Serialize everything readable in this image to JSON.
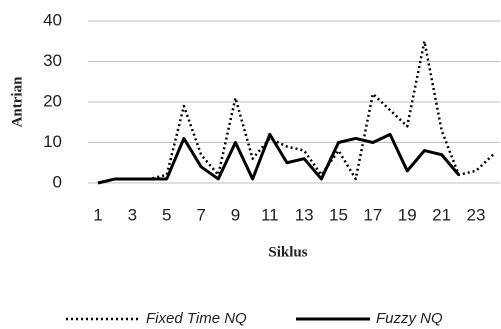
{
  "chart_data": {
    "type": "line",
    "x_label": "Siklus",
    "y_label": "Antrian",
    "categories": [
      1,
      null,
      3,
      null,
      5,
      null,
      7,
      null,
      9,
      null,
      11,
      null,
      13,
      null,
      15,
      null,
      17,
      null,
      19,
      null,
      21,
      null,
      23,
      null
    ],
    "series": [
      {
        "name": "Fixed Time NQ",
        "color": "#000000",
        "style": "dotted",
        "values": [
          0,
          1,
          1,
          1,
          2,
          19,
          7,
          2,
          21,
          6,
          11,
          9,
          8,
          2,
          8,
          1,
          22,
          18,
          14,
          35,
          13,
          2,
          3,
          7
        ]
      },
      {
        "name": "Fuzzy NQ",
        "color": "#000000",
        "style": "solid",
        "values": [
          0,
          1,
          1,
          1,
          1,
          11,
          4,
          1,
          10,
          1,
          12,
          5,
          6,
          1,
          10,
          11,
          10,
          12,
          3,
          8,
          7,
          2,
          null,
          null
        ]
      }
    ],
    "ylim": [
      0,
      40
    ],
    "yticks": [
      0,
      10,
      20,
      30,
      40
    ],
    "grid": true,
    "legend": "bottom"
  }
}
